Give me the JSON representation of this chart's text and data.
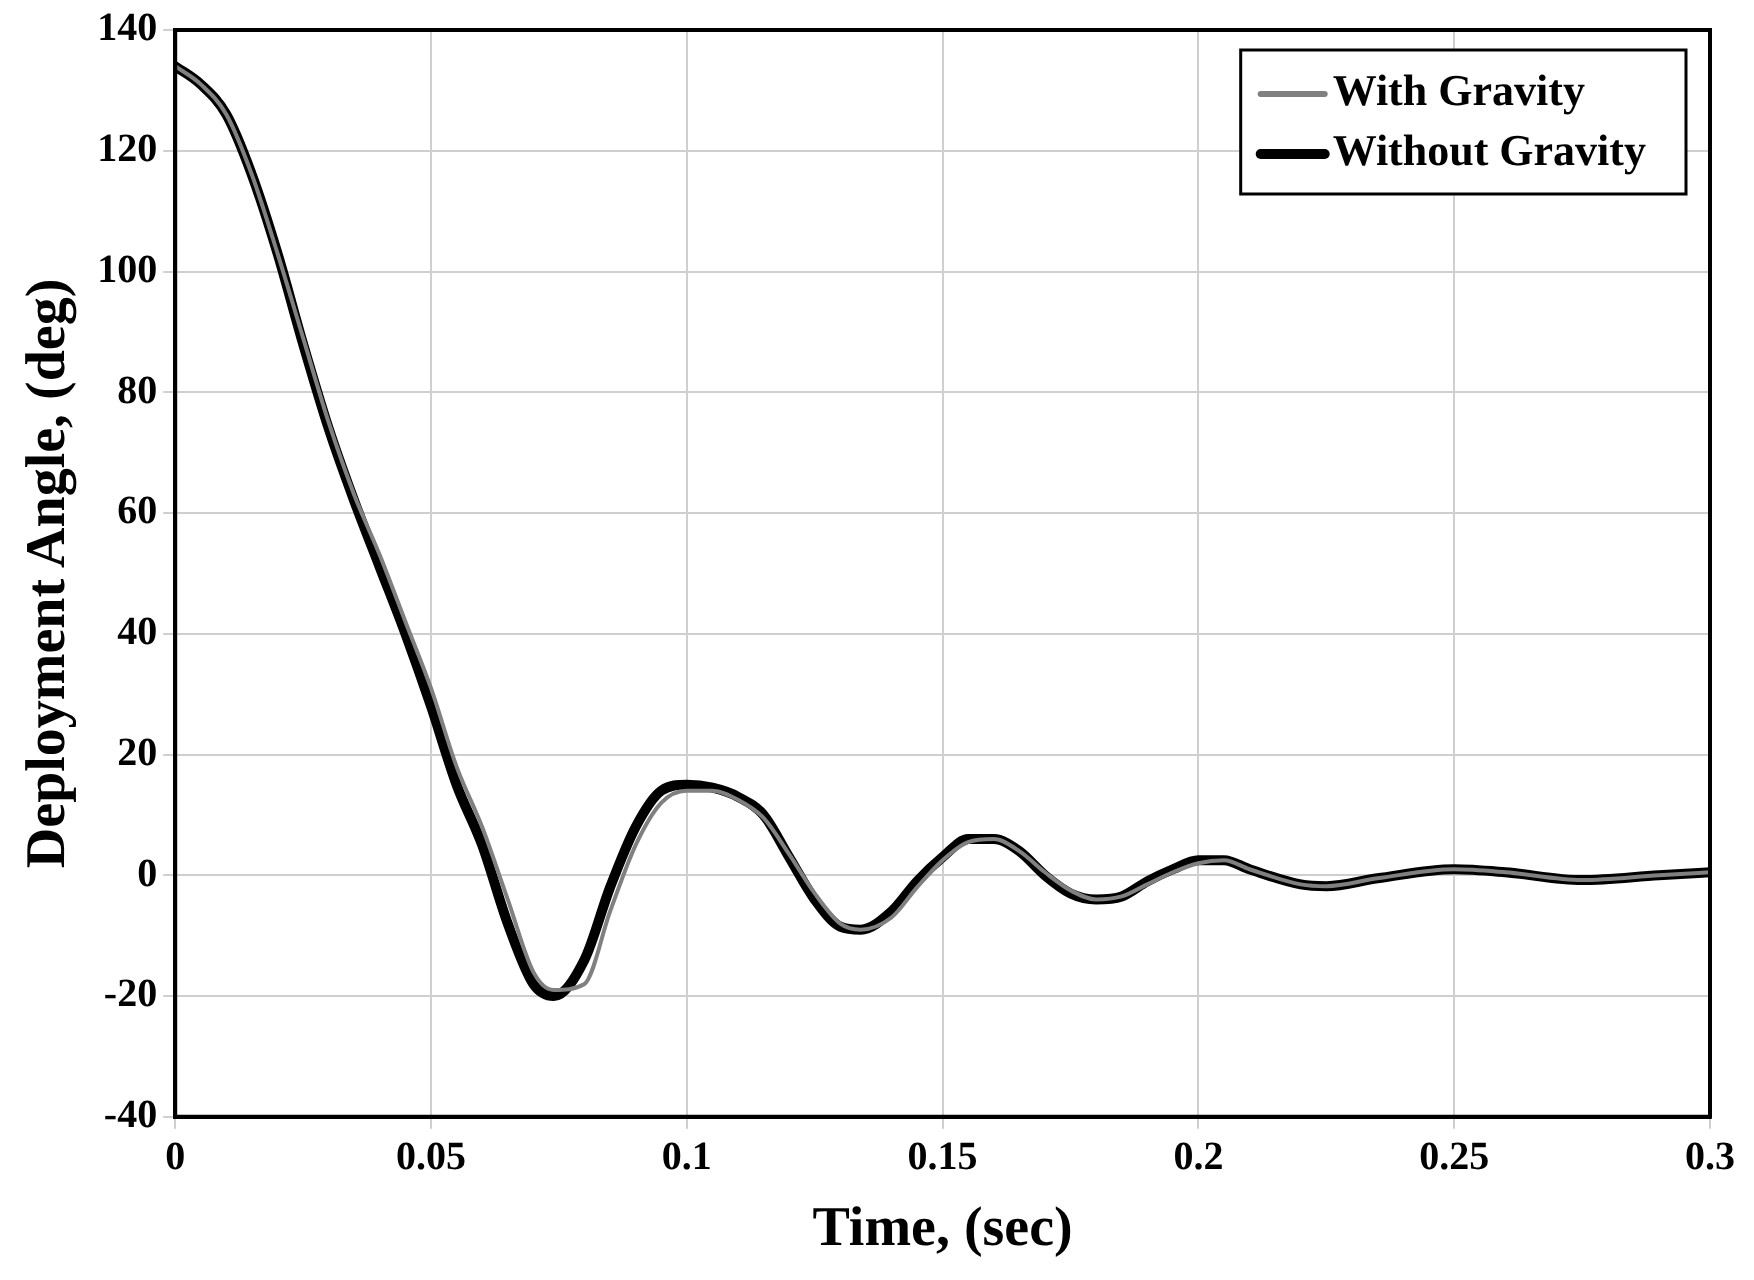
{
  "chart_data": {
    "type": "line",
    "xlabel": "Time, (sec)",
    "ylabel": "Deployment Angle, (deg)",
    "x": [
      0,
      0.005,
      0.01,
      0.015,
      0.02,
      0.025,
      0.03,
      0.035,
      0.04,
      0.045,
      0.05,
      0.055,
      0.06,
      0.065,
      0.07,
      0.074,
      0.08,
      0.085,
      0.09,
      0.095,
      0.1,
      0.105,
      0.11,
      0.115,
      0.12,
      0.125,
      0.13,
      0.134,
      0.14,
      0.145,
      0.15,
      0.155,
      0.16,
      0.165,
      0.17,
      0.175,
      0.18,
      0.185,
      0.19,
      0.195,
      0.2,
      0.205,
      0.21,
      0.22,
      0.225,
      0.235,
      0.25,
      0.26,
      0.275,
      0.29,
      0.3
    ],
    "series": [
      {
        "name": "With Gravity",
        "color": "#808080",
        "values": [
          134,
          131,
          126,
          116,
          103,
          89,
          75,
          63,
          53,
          42,
          31,
          18,
          8,
          -4,
          -16,
          -19,
          -18,
          -6,
          5,
          12,
          14,
          14,
          12.5,
          9.5,
          3.5,
          -3,
          -8,
          -9,
          -7,
          -2,
          2.5,
          5.5,
          6,
          4,
          0.5,
          -2.5,
          -4,
          -3.5,
          -1.5,
          0.5,
          2,
          2.5,
          1,
          -1.5,
          -1.8,
          -0.5,
          1,
          0.5,
          -0.8,
          0,
          0.5
        ]
      },
      {
        "name": "Without Gravity",
        "color": "#000000",
        "values": [
          134,
          131,
          126,
          116,
          103,
          88,
          74,
          62,
          51,
          40,
          28,
          15,
          5,
          -8,
          -18,
          -20,
          -14,
          -2,
          8,
          14,
          15,
          14.5,
          13,
          10,
          3,
          -4,
          -8.5,
          -9,
          -6,
          -1,
          3,
          6,
          6,
          4,
          0,
          -3,
          -4,
          -3.5,
          -1,
          1,
          2.5,
          2.5,
          1,
          -1.5,
          -1.8,
          -0.5,
          1,
          0.5,
          -0.8,
          0,
          0.5
        ]
      }
    ],
    "xlim": [
      0,
      0.3
    ],
    "xticks": [
      0,
      0.05,
      0.1,
      0.15,
      0.2,
      0.25,
      0.3
    ],
    "ylim": [
      -40,
      140
    ],
    "yticks": [
      -40,
      -20,
      0,
      20,
      40,
      60,
      80,
      100,
      120,
      140
    ],
    "grid": true,
    "legend": "top right",
    "marker": "none",
    "line_style": "solid"
  }
}
